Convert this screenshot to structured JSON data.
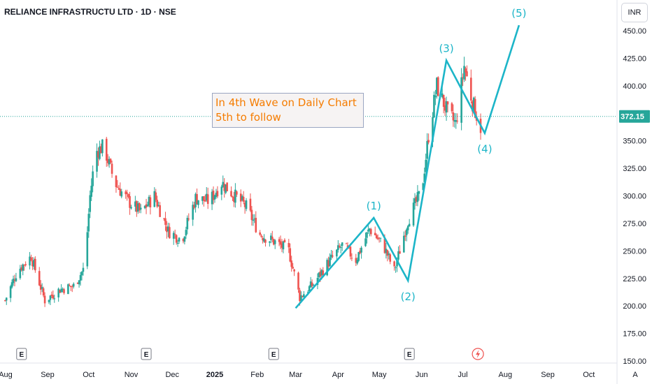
{
  "header": {
    "title": "RELIANCE INFRASTRUCTU LTD · 1D · NSE"
  },
  "currency_button": "INR",
  "auto_label": "A",
  "annotation": {
    "line1": "In 4th Wave on Daily Chart",
    "line2": "5th to follow"
  },
  "colors": {
    "up": "#26a69a",
    "down": "#ef5350",
    "wave": "#1cb5c8",
    "last_price_bg": "#26a69a",
    "note_text": "#f57c00"
  },
  "event_icons": [
    "E",
    "E",
    "E",
    "E",
    "lightning-icon"
  ],
  "chart_data": {
    "type": "candlestick",
    "title": "RELIANCE INFRASTRUCTU LTD · 1D · NSE",
    "ylim": [
      150,
      465
    ],
    "y_ticks": [
      150,
      175,
      200,
      225,
      250,
      275,
      300,
      325,
      350,
      375,
      400,
      425,
      450
    ],
    "y_tick_labels": [
      "150.00",
      "175.00",
      "200.00",
      "225.00",
      "250.00",
      "275.00",
      "300.00",
      "325.00",
      "350.00",
      "375.00",
      "400.00",
      "425.00",
      "450.00"
    ],
    "x_ticks": [
      "Aug",
      "Sep",
      "Oct",
      "Nov",
      "Dec",
      "2025",
      "Feb",
      "Mar",
      "Apr",
      "May",
      "Jun",
      "Jul",
      "Aug",
      "Sep",
      "Oct"
    ],
    "last_price": 372.15,
    "last_price_label": "372.15",
    "price_path": [
      {
        "date": "2024-08-01",
        "price": 205
      },
      {
        "date": "2024-08-10",
        "price": 232
      },
      {
        "date": "2024-08-20",
        "price": 245
      },
      {
        "date": "2024-08-30",
        "price": 205
      },
      {
        "date": "2024-09-10",
        "price": 215
      },
      {
        "date": "2024-09-20",
        "price": 218
      },
      {
        "date": "2024-09-28",
        "price": 235
      },
      {
        "date": "2024-10-02",
        "price": 300
      },
      {
        "date": "2024-10-06",
        "price": 340
      },
      {
        "date": "2024-10-12",
        "price": 345
      },
      {
        "date": "2024-10-20",
        "price": 312
      },
      {
        "date": "2024-10-30",
        "price": 295
      },
      {
        "date": "2024-11-08",
        "price": 285
      },
      {
        "date": "2024-11-18",
        "price": 300
      },
      {
        "date": "2024-11-28",
        "price": 268
      },
      {
        "date": "2024-12-08",
        "price": 260
      },
      {
        "date": "2024-12-18",
        "price": 298
      },
      {
        "date": "2024-12-28",
        "price": 295
      },
      {
        "date": "2025-01-06",
        "price": 312
      },
      {
        "date": "2025-01-14",
        "price": 302
      },
      {
        "date": "2025-01-24",
        "price": 290
      },
      {
        "date": "2025-02-03",
        "price": 265
      },
      {
        "date": "2025-02-14",
        "price": 258
      },
      {
        "date": "2025-02-24",
        "price": 250
      },
      {
        "date": "2025-03-04",
        "price": 208
      },
      {
        "date": "2025-03-14",
        "price": 220
      },
      {
        "date": "2025-03-24",
        "price": 238
      },
      {
        "date": "2025-04-04",
        "price": 255
      },
      {
        "date": "2025-04-14",
        "price": 242
      },
      {
        "date": "2025-04-24",
        "price": 270
      },
      {
        "date": "2025-05-04",
        "price": 255
      },
      {
        "date": "2025-05-12",
        "price": 232
      },
      {
        "date": "2025-05-22",
        "price": 278
      },
      {
        "date": "2025-06-01",
        "price": 305
      },
      {
        "date": "2025-06-06",
        "price": 355
      },
      {
        "date": "2025-06-12",
        "price": 400
      },
      {
        "date": "2025-06-20",
        "price": 375
      },
      {
        "date": "2025-06-26",
        "price": 365
      },
      {
        "date": "2025-07-02",
        "price": 418
      },
      {
        "date": "2025-07-08",
        "price": 385
      },
      {
        "date": "2025-07-14",
        "price": 362
      }
    ],
    "waves": [
      {
        "date": "2025-03-01",
        "price": 198,
        "label": ""
      },
      {
        "date": "2025-04-27",
        "price": 280,
        "label": "(1)"
      },
      {
        "date": "2025-05-22",
        "price": 223,
        "label": "(2)"
      },
      {
        "date": "2025-06-19",
        "price": 423,
        "label": "(3)"
      },
      {
        "date": "2025-07-17",
        "price": 357,
        "label": "(4)"
      },
      {
        "date": "2025-08-11",
        "price": 455,
        "label": "(5)"
      }
    ]
  }
}
